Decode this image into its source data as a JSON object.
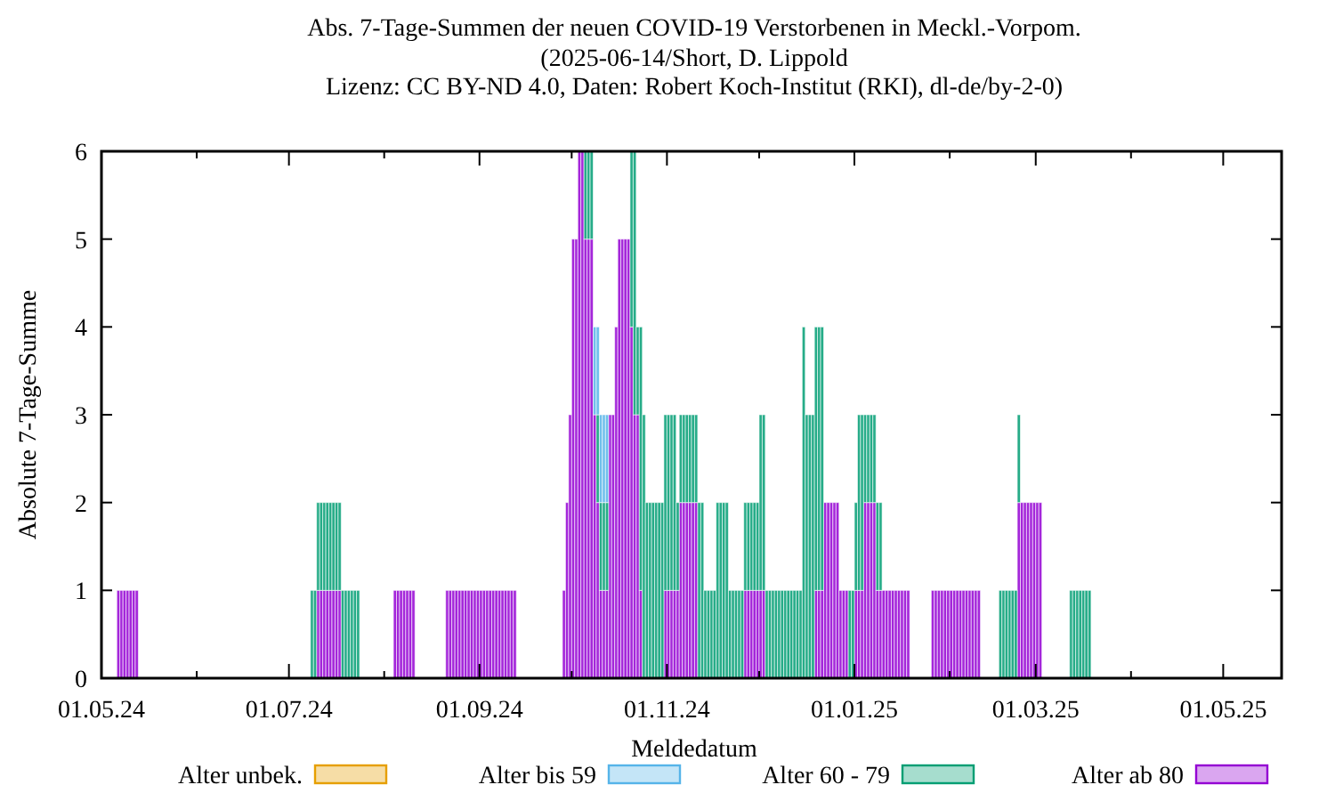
{
  "chart_data": {
    "type": "bar",
    "stacked": true,
    "title": "Abs. 7-Tage-Summen der neuen COVID-19 Verstorbenen in Meckl.-Vorpom.",
    "subtitle": "(2025-06-14/Short, D. Lippold\nLizenz: CC BY-ND 4.0, Daten: Robert Koch-Institut (RKI), dl-de/by-2-0)",
    "xlabel": "Meldedatum",
    "ylabel": "Absolute 7-Tage-Summe",
    "xlim": [
      "2024-05-01",
      "2025-05-20"
    ],
    "xticks": [
      {
        "value": "2024-05-01",
        "label": "01.05.24"
      },
      {
        "value": "2024-06-01",
        "label": null
      },
      {
        "value": "2024-07-01",
        "label": "01.07.24"
      },
      {
        "value": "2024-08-01",
        "label": null
      },
      {
        "value": "2024-09-01",
        "label": "01.09.24"
      },
      {
        "value": "2024-10-01",
        "label": null
      },
      {
        "value": "2024-11-01",
        "label": "01.11.24"
      },
      {
        "value": "2024-12-01",
        "label": null
      },
      {
        "value": "2025-01-01",
        "label": "01.01.25"
      },
      {
        "value": "2025-02-01",
        "label": null
      },
      {
        "value": "2025-03-01",
        "label": "01.03.25"
      },
      {
        "value": "2025-04-01",
        "label": null
      },
      {
        "value": "2025-05-01",
        "label": "01.05.25"
      }
    ],
    "ylim": [
      0,
      6
    ],
    "yticks": [
      0,
      1,
      2,
      3,
      4,
      5,
      6
    ],
    "grid": false,
    "legend": "bottom",
    "x": [
      "2024-05-06",
      "2024-05-07",
      "2024-05-08",
      "2024-05-09",
      "2024-05-10",
      "2024-05-11",
      "2024-05-12",
      "2024-07-08",
      "2024-07-09",
      "2024-07-10",
      "2024-07-11",
      "2024-07-12",
      "2024-07-13",
      "2024-07-14",
      "2024-07-15",
      "2024-07-16",
      "2024-07-17",
      "2024-07-18",
      "2024-07-19",
      "2024-07-20",
      "2024-07-21",
      "2024-07-22",
      "2024-07-23",
      "2024-08-04",
      "2024-08-05",
      "2024-08-06",
      "2024-08-07",
      "2024-08-08",
      "2024-08-09",
      "2024-08-10",
      "2024-08-21",
      "2024-08-22",
      "2024-08-23",
      "2024-08-24",
      "2024-08-25",
      "2024-08-26",
      "2024-08-27",
      "2024-08-28",
      "2024-08-29",
      "2024-08-30",
      "2024-08-31",
      "2024-09-01",
      "2024-09-02",
      "2024-09-03",
      "2024-09-04",
      "2024-09-05",
      "2024-09-06",
      "2024-09-07",
      "2024-09-08",
      "2024-09-09",
      "2024-09-10",
      "2024-09-11",
      "2024-09-12",
      "2024-09-28",
      "2024-09-29",
      "2024-09-30",
      "2024-10-01",
      "2024-10-02",
      "2024-10-03",
      "2024-10-04",
      "2024-10-05",
      "2024-10-06",
      "2024-10-07",
      "2024-10-08",
      "2024-10-09",
      "2024-10-10",
      "2024-10-11",
      "2024-10-12",
      "2024-10-13",
      "2024-10-14",
      "2024-10-15",
      "2024-10-16",
      "2024-10-17",
      "2024-10-18",
      "2024-10-19",
      "2024-10-20",
      "2024-10-21",
      "2024-10-22",
      "2024-10-23",
      "2024-10-24",
      "2024-10-25",
      "2024-10-26",
      "2024-10-27",
      "2024-10-28",
      "2024-10-29",
      "2024-10-30",
      "2024-10-31",
      "2024-11-01",
      "2024-11-02",
      "2024-11-03",
      "2024-11-04",
      "2024-11-05",
      "2024-11-06",
      "2024-11-07",
      "2024-11-08",
      "2024-11-09",
      "2024-11-10",
      "2024-11-11",
      "2024-11-12",
      "2024-11-13",
      "2024-11-14",
      "2024-11-15",
      "2024-11-16",
      "2024-11-17",
      "2024-11-18",
      "2024-11-19",
      "2024-11-20",
      "2024-11-21",
      "2024-11-22",
      "2024-11-23",
      "2024-11-24",
      "2024-11-25",
      "2024-11-26",
      "2024-11-27",
      "2024-11-28",
      "2024-11-29",
      "2024-11-30",
      "2024-12-01",
      "2024-12-02",
      "2024-12-03",
      "2024-12-04",
      "2024-12-05",
      "2024-12-06",
      "2024-12-07",
      "2024-12-08",
      "2024-12-09",
      "2024-12-10",
      "2024-12-11",
      "2024-12-12",
      "2024-12-13",
      "2024-12-14",
      "2024-12-15",
      "2024-12-16",
      "2024-12-17",
      "2024-12-18",
      "2024-12-19",
      "2024-12-20",
      "2024-12-21",
      "2024-12-22",
      "2024-12-23",
      "2024-12-24",
      "2024-12-25",
      "2024-12-26",
      "2024-12-27",
      "2024-12-28",
      "2024-12-29",
      "2024-12-30",
      "2024-12-31",
      "2025-01-01",
      "2025-01-02",
      "2025-01-03",
      "2025-01-04",
      "2025-01-05",
      "2025-01-06",
      "2025-01-07",
      "2025-01-08",
      "2025-01-09",
      "2025-01-10",
      "2025-01-11",
      "2025-01-12",
      "2025-01-13",
      "2025-01-14",
      "2025-01-15",
      "2025-01-16",
      "2025-01-17",
      "2025-01-18",
      "2025-01-26",
      "2025-01-27",
      "2025-01-28",
      "2025-01-29",
      "2025-01-30",
      "2025-01-31",
      "2025-02-01",
      "2025-02-02",
      "2025-02-03",
      "2025-02-04",
      "2025-02-05",
      "2025-02-06",
      "2025-02-07",
      "2025-02-08",
      "2025-02-09",
      "2025-02-10",
      "2025-02-17",
      "2025-02-18",
      "2025-02-19",
      "2025-02-20",
      "2025-02-21",
      "2025-02-22",
      "2025-02-23",
      "2025-02-24",
      "2025-02-25",
      "2025-02-26",
      "2025-02-27",
      "2025-02-28",
      "2025-03-01",
      "2025-03-02",
      "2025-03-12",
      "2025-03-13",
      "2025-03-14",
      "2025-03-15",
      "2025-03-16",
      "2025-03-17",
      "2025-03-18"
    ],
    "series": [
      {
        "name": "Alter ab 80",
        "color": "#9400d3",
        "values": [
          1,
          1,
          1,
          1,
          1,
          1,
          1,
          null,
          null,
          1,
          1,
          1,
          1,
          1,
          1,
          1,
          1,
          null,
          null,
          null,
          null,
          null,
          null,
          1,
          1,
          1,
          1,
          1,
          1,
          1,
          1,
          1,
          1,
          1,
          1,
          1,
          1,
          1,
          1,
          1,
          1,
          1,
          1,
          1,
          1,
          1,
          1,
          1,
          1,
          1,
          1,
          1,
          1,
          1,
          2,
          3,
          5,
          5,
          6,
          6,
          5,
          5,
          5,
          3,
          2,
          1,
          1,
          1,
          3,
          3,
          4,
          5,
          5,
          5,
          5,
          4,
          3,
          3,
          1,
          null,
          null,
          null,
          null,
          null,
          null,
          null,
          1,
          1,
          1,
          1,
          1,
          2,
          2,
          2,
          2,
          2,
          2,
          null,
          null,
          null,
          null,
          null,
          null,
          null,
          null,
          null,
          null,
          null,
          null,
          null,
          null,
          null,
          1,
          1,
          1,
          1,
          1,
          1,
          1,
          null,
          null,
          null,
          null,
          null,
          null,
          null,
          null,
          null,
          null,
          null,
          null,
          null,
          null,
          null,
          null,
          1,
          1,
          1,
          2,
          2,
          2,
          2,
          2,
          1,
          1,
          1,
          null,
          null,
          1,
          1,
          1,
          2,
          2,
          2,
          2,
          1,
          1,
          1,
          1,
          1,
          1,
          1,
          1,
          1,
          1,
          1,
          1,
          1,
          1,
          1,
          1,
          1,
          1,
          1,
          1,
          1,
          1,
          1,
          1,
          1,
          1,
          1,
          null,
          null,
          null,
          null,
          null,
          null,
          2,
          2,
          2,
          2,
          2,
          2,
          2,
          2,
          null,
          null,
          null,
          null,
          null,
          null,
          null
        ]
      },
      {
        "name": "Alter 60 - 79",
        "color": "#009e73",
        "values": [
          null,
          null,
          null,
          null,
          null,
          null,
          null,
          1,
          1,
          1,
          1,
          1,
          1,
          1,
          1,
          1,
          1,
          1,
          1,
          1,
          1,
          1,
          1,
          null,
          null,
          null,
          null,
          null,
          null,
          null,
          null,
          null,
          null,
          null,
          null,
          null,
          null,
          null,
          null,
          null,
          null,
          null,
          null,
          null,
          null,
          null,
          null,
          null,
          null,
          null,
          null,
          null,
          null,
          null,
          null,
          null,
          null,
          null,
          null,
          null,
          1,
          1,
          1,
          null,
          1,
          1,
          1,
          1,
          null,
          null,
          null,
          null,
          null,
          null,
          null,
          2,
          3,
          1,
          3,
          3,
          2,
          2,
          2,
          2,
          2,
          2,
          2,
          2,
          2,
          2,
          1,
          1,
          1,
          1,
          1,
          1,
          1,
          2,
          2,
          1,
          1,
          1,
          1,
          2,
          2,
          2,
          2,
          1,
          1,
          1,
          1,
          1,
          1,
          1,
          1,
          1,
          1,
          2,
          2,
          1,
          1,
          1,
          1,
          1,
          1,
          1,
          1,
          1,
          1,
          1,
          1,
          4,
          3,
          3,
          3,
          3,
          3,
          3,
          null,
          null,
          null,
          null,
          null,
          null,
          null,
          null,
          1,
          1,
          1,
          2,
          2,
          1,
          1,
          1,
          1,
          1,
          1,
          null,
          null,
          null,
          null,
          null,
          null,
          null,
          null,
          null,
          null,
          null,
          null,
          null,
          null,
          null,
          null,
          null,
          null,
          null,
          null,
          null,
          null,
          null,
          null,
          null,
          1,
          1,
          1,
          1,
          1,
          1,
          1,
          null,
          null,
          null,
          null,
          null,
          null,
          null,
          1,
          1,
          1,
          1,
          1,
          1,
          1
        ]
      },
      {
        "name": "Alter bis 59",
        "color": "#56b4e9",
        "values": [
          null,
          null,
          null,
          null,
          null,
          null,
          null,
          null,
          null,
          null,
          null,
          null,
          null,
          null,
          null,
          null,
          null,
          null,
          null,
          null,
          null,
          null,
          null,
          null,
          null,
          null,
          null,
          null,
          null,
          null,
          null,
          null,
          null,
          null,
          null,
          null,
          null,
          null,
          null,
          null,
          null,
          null,
          null,
          null,
          null,
          null,
          null,
          null,
          null,
          null,
          null,
          null,
          null,
          null,
          null,
          null,
          null,
          null,
          null,
          null,
          null,
          null,
          null,
          1,
          1,
          1,
          1,
          1,
          null,
          null,
          null,
          null,
          null,
          null,
          null,
          null,
          null,
          null,
          null,
          null,
          null,
          null,
          null,
          null,
          null,
          null,
          null,
          null,
          null,
          null,
          null,
          null,
          null,
          null,
          null,
          null,
          null,
          null,
          null,
          null,
          null,
          null,
          null,
          null,
          null,
          null,
          null,
          null,
          null,
          null,
          null,
          null,
          null,
          null,
          null,
          null,
          null,
          null,
          null,
          null,
          null,
          null,
          null,
          null,
          null,
          null,
          null,
          null,
          null,
          null,
          null,
          null,
          null,
          null,
          null,
          null,
          null,
          null,
          null,
          null,
          null,
          null,
          null,
          null,
          null,
          null,
          null,
          null,
          null,
          null,
          null,
          null,
          null,
          null,
          null,
          null,
          null,
          null,
          null,
          null,
          null,
          null,
          null,
          null,
          null,
          null,
          null,
          null,
          null,
          null,
          null,
          null,
          null,
          null,
          null,
          null,
          null,
          null,
          null,
          null,
          null,
          null,
          null,
          null,
          null,
          null,
          null,
          null,
          null,
          null,
          null,
          null,
          null,
          null,
          null,
          null,
          null,
          null,
          null,
          null,
          null,
          null,
          null
        ]
      },
      {
        "name": "Alter unbek.",
        "color": "#e69f00",
        "values": [
          null,
          null,
          null,
          null,
          null,
          null,
          null,
          null,
          null,
          null,
          null,
          null,
          null,
          null,
          null,
          null,
          null,
          null,
          null,
          null,
          null,
          null,
          null,
          null,
          null,
          null,
          null,
          null,
          null,
          null,
          null,
          null,
          null,
          null,
          null,
          null,
          null,
          null,
          null,
          null,
          null,
          null,
          null,
          null,
          null,
          null,
          null,
          null,
          null,
          null,
          null,
          null,
          null,
          null,
          null,
          null,
          null,
          null,
          null,
          null,
          null,
          null,
          null,
          null,
          null,
          null,
          null,
          null,
          null,
          null,
          null,
          null,
          null,
          null,
          null,
          null,
          null,
          null,
          null,
          null,
          null,
          null,
          null,
          null,
          null,
          null,
          null,
          null,
          null,
          null,
          null,
          null,
          null,
          null,
          null,
          null,
          null,
          null,
          null,
          null,
          null,
          null,
          null,
          null,
          null,
          null,
          null,
          null,
          null,
          null,
          null,
          null,
          null,
          null,
          null,
          null,
          null,
          null,
          null,
          null,
          null,
          null,
          null,
          null,
          null,
          null,
          null,
          null,
          null,
          null,
          null,
          null,
          null,
          null,
          null,
          null,
          null,
          null,
          null,
          null,
          null,
          null,
          null,
          null,
          null,
          null,
          null,
          null,
          null,
          null,
          null,
          null,
          null,
          null,
          null,
          null,
          null,
          null,
          null,
          null,
          null,
          null,
          null,
          null,
          null,
          null,
          null,
          null,
          null,
          null,
          null,
          null,
          null,
          null,
          null,
          null,
          null,
          null,
          null,
          null,
          null,
          null,
          null,
          null,
          null,
          null,
          null,
          null,
          null,
          null,
          null,
          null,
          null,
          null,
          null,
          null,
          null,
          null,
          null,
          null,
          null,
          null,
          null
        ]
      }
    ]
  }
}
